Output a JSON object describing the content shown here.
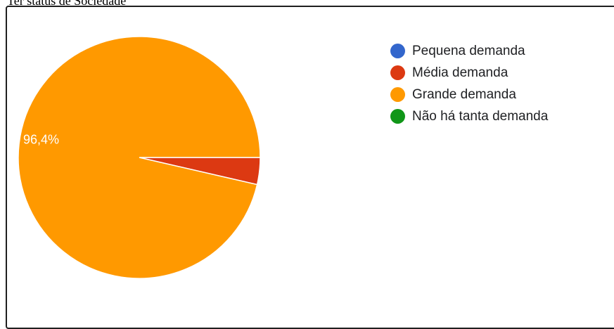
{
  "header": {
    "caption": "Ter status de Sociedade"
  },
  "chart_data": {
    "type": "pie",
    "categories": [
      "Pequena demanda",
      "Média demanda",
      "Grande demanda",
      "Não há tanta demanda"
    ],
    "values": [
      0,
      3.6,
      96.4,
      0
    ],
    "value_labels": [
      "",
      "",
      "96,4%",
      ""
    ],
    "colors": [
      "#3366cc",
      "#dc3912",
      "#ff9900",
      "#109618"
    ],
    "start_angle_deg": 0,
    "legend_position": "right"
  }
}
